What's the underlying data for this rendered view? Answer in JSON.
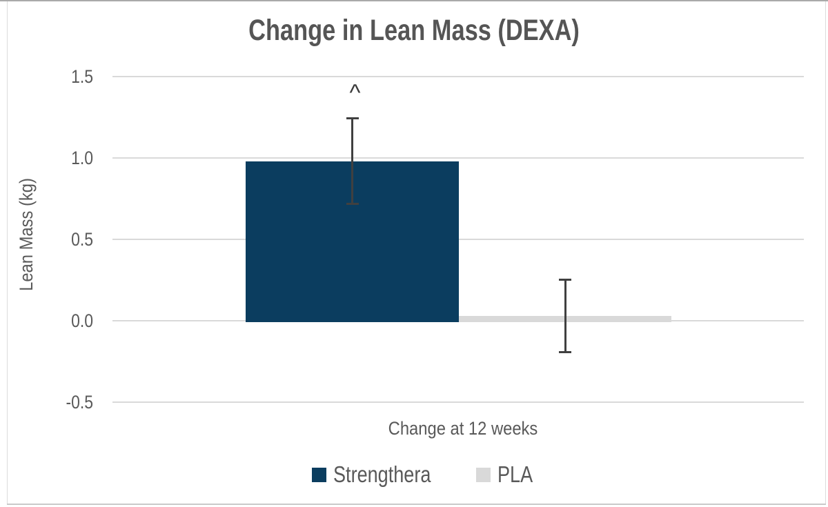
{
  "chart_data": {
    "type": "bar",
    "title": "Change in Lean Mass (DEXA)",
    "ylabel": "Lean Mass (kg)",
    "xlabel": "",
    "categories": [
      "Change at 12 weeks"
    ],
    "series": [
      {
        "name": "Strengthera",
        "color": "#0b3d5f",
        "values": [
          0.98
        ],
        "error_low": [
          0.71
        ],
        "error_high": [
          1.25
        ],
        "annotation": "^"
      },
      {
        "name": "PLA",
        "color": "#d9d9d9",
        "values": [
          0.03
        ],
        "error_low": [
          -0.2
        ],
        "error_high": [
          0.26
        ],
        "annotation": ""
      }
    ],
    "y_ticks": [
      "1.5",
      "1.0",
      "0.5",
      "0.0",
      "-0.5"
    ],
    "y_tick_values": [
      1.5,
      1.0,
      0.5,
      0.0,
      -0.5
    ],
    "ylim": [
      -0.5,
      1.5
    ],
    "grid": true,
    "legend_position": "bottom",
    "colors": {
      "title_text": "#555555",
      "axis_text": "#595959",
      "gridline": "#d9d9d9",
      "error_bar": "#404040"
    }
  }
}
